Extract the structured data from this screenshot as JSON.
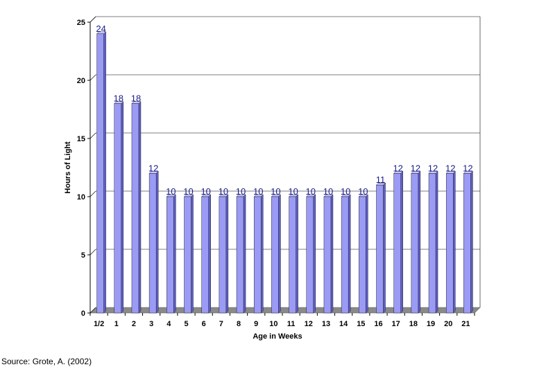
{
  "chart_data": {
    "type": "bar",
    "title": "",
    "xlabel": "Age in Weeks",
    "ylabel": "Hours of Light",
    "categories": [
      "1/2",
      "1",
      "2",
      "3",
      "4",
      "5",
      "6",
      "7",
      "8",
      "9",
      "10",
      "11",
      "12",
      "13",
      "14",
      "15",
      "16",
      "17",
      "18",
      "19",
      "20",
      "21"
    ],
    "values": [
      24,
      18,
      18,
      12,
      10,
      10,
      10,
      10,
      10,
      10,
      10,
      10,
      10,
      10,
      10,
      10,
      11,
      12,
      12,
      12,
      12,
      12
    ],
    "ylim": [
      0,
      25
    ],
    "yticks": [
      0,
      5,
      10,
      15,
      20,
      25
    ],
    "grid": true,
    "legend": "none",
    "colors": {
      "bar_front": "#9b9bf5",
      "bar_side": "#5f5fd0",
      "bar_top": "#c8c8ff",
      "floor": "#8a8a8a",
      "label": "#1a1a8c"
    }
  },
  "source": "Source: Grote, A. (2002)"
}
